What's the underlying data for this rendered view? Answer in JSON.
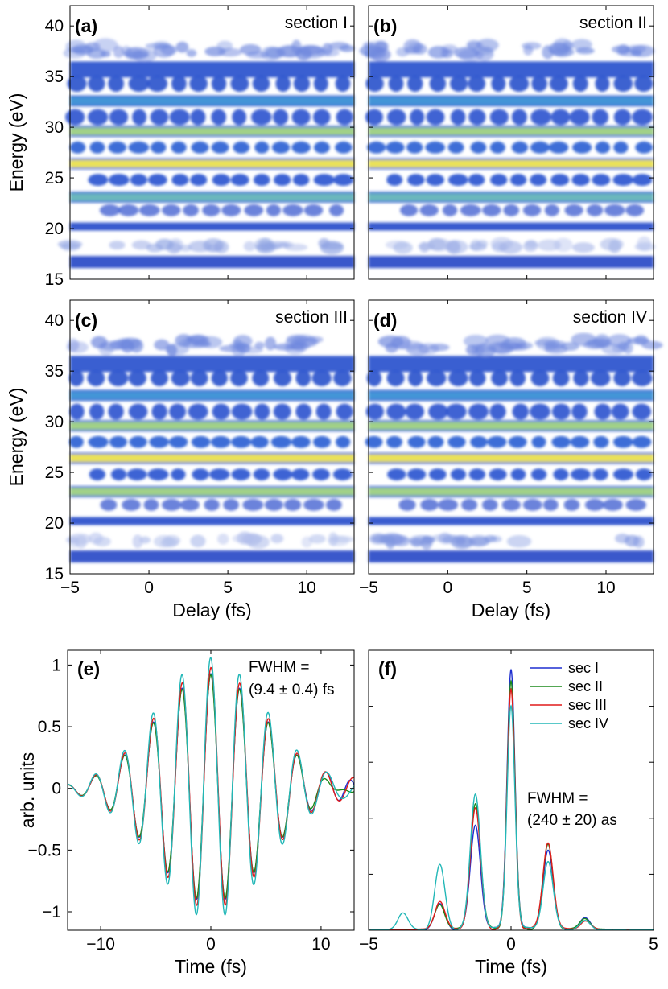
{
  "chart_data": [
    {
      "type": "heatmap",
      "panel": "(a)",
      "label": "section I",
      "xlim": [
        -5,
        13
      ],
      "ylim": [
        15,
        42
      ],
      "xticks": [
        "-5",
        "0",
        "5",
        "10"
      ],
      "yticks": [
        "15",
        "20",
        "25",
        "30",
        "35",
        "40"
      ],
      "xlabel": "",
      "ylabel": "Energy (eV)",
      "bands": [
        {
          "energy": 16.7,
          "kind": "solid",
          "color": "#2e4fc8"
        },
        {
          "energy": 18.3,
          "kind": "faint",
          "color": "#8fa3e3"
        },
        {
          "energy": 20.2,
          "kind": "solid",
          "color": "#2f52cc"
        },
        {
          "energy": 21.8,
          "kind": "blobs",
          "color": "#3859cf"
        },
        {
          "energy": 23.1,
          "kind": "solid",
          "color": "#62b3b9"
        },
        {
          "energy": 24.8,
          "kind": "blobs",
          "color": "#2c56d0"
        },
        {
          "energy": 26.4,
          "kind": "solid",
          "color": "#e9e04f"
        },
        {
          "energy": 28.0,
          "kind": "blobs",
          "color": "#2c62d4"
        },
        {
          "energy": 29.6,
          "kind": "solid",
          "color": "#9ccf82"
        },
        {
          "energy": 31.0,
          "kind": "blobs",
          "color": "#2f56cf"
        },
        {
          "energy": 32.6,
          "kind": "solid",
          "color": "#3a8fd5"
        },
        {
          "energy": 34.3,
          "kind": "blobs",
          "color": "#2e54cc"
        },
        {
          "energy": 35.7,
          "kind": "solid",
          "color": "#2f56cf"
        },
        {
          "energy": 37.6,
          "kind": "faint",
          "color": "#6f88de"
        }
      ]
    },
    {
      "type": "heatmap",
      "panel": "(b)",
      "label": "section II",
      "xlim": [
        -5,
        13
      ],
      "ylim": [
        15,
        42
      ],
      "xticks": [
        "-5",
        "0",
        "5",
        "10"
      ],
      "yticks": [
        "15",
        "20",
        "25",
        "30",
        "35",
        "40"
      ],
      "xlabel": "",
      "ylabel": "",
      "bands": [
        {
          "energy": 16.7,
          "kind": "solid",
          "color": "#2e4fc8"
        },
        {
          "energy": 18.3,
          "kind": "faint",
          "color": "#a3b3e8"
        },
        {
          "energy": 20.2,
          "kind": "solid",
          "color": "#2f52cc"
        },
        {
          "energy": 21.8,
          "kind": "blobs",
          "color": "#3859cf"
        },
        {
          "energy": 23.1,
          "kind": "solid",
          "color": "#62b3b9"
        },
        {
          "energy": 24.8,
          "kind": "blobs",
          "color": "#2c56d0"
        },
        {
          "energy": 26.4,
          "kind": "solid",
          "color": "#e9e04f"
        },
        {
          "energy": 28.0,
          "kind": "blobs",
          "color": "#2c62d4"
        },
        {
          "energy": 29.6,
          "kind": "solid",
          "color": "#9ccf82"
        },
        {
          "energy": 31.0,
          "kind": "blobs",
          "color": "#2f56cf"
        },
        {
          "energy": 32.6,
          "kind": "solid",
          "color": "#3a8fd5"
        },
        {
          "energy": 34.3,
          "kind": "blobs",
          "color": "#2e54cc"
        },
        {
          "energy": 35.7,
          "kind": "solid",
          "color": "#2f56cf"
        },
        {
          "energy": 37.6,
          "kind": "faint",
          "color": "#6f88de"
        }
      ]
    },
    {
      "type": "heatmap",
      "panel": "(c)",
      "label": "section III",
      "xlim": [
        -5,
        13
      ],
      "ylim": [
        15,
        42
      ],
      "xticks": [
        "-5",
        "0",
        "5",
        "10"
      ],
      "yticks": [
        "15",
        "20",
        "25",
        "30",
        "35",
        "40"
      ],
      "xlabel": "Delay (fs)",
      "ylabel": "Energy (eV)",
      "bands": [
        {
          "energy": 16.7,
          "kind": "solid",
          "color": "#2e4fc8"
        },
        {
          "energy": 18.3,
          "kind": "faint",
          "color": "#b3c0ec"
        },
        {
          "energy": 20.2,
          "kind": "solid",
          "color": "#2f52cc"
        },
        {
          "energy": 21.8,
          "kind": "blobs",
          "color": "#3859cf"
        },
        {
          "energy": 23.1,
          "kind": "solid",
          "color": "#9ccf82"
        },
        {
          "energy": 24.8,
          "kind": "blobs",
          "color": "#2c56d0"
        },
        {
          "energy": 26.4,
          "kind": "solid",
          "color": "#e9e04f"
        },
        {
          "energy": 28.0,
          "kind": "blobs",
          "color": "#2c62d4"
        },
        {
          "energy": 29.6,
          "kind": "solid",
          "color": "#9ccf82"
        },
        {
          "energy": 31.0,
          "kind": "blobs",
          "color": "#2f56cf"
        },
        {
          "energy": 32.6,
          "kind": "solid",
          "color": "#3a8fd5"
        },
        {
          "energy": 34.3,
          "kind": "blobs",
          "color": "#2e54cc"
        },
        {
          "energy": 35.7,
          "kind": "solid",
          "color": "#2f56cf"
        },
        {
          "energy": 37.6,
          "kind": "faint",
          "color": "#6f88de"
        }
      ]
    },
    {
      "type": "heatmap",
      "panel": "(d)",
      "label": "section IV",
      "xlim": [
        -5,
        13
      ],
      "ylim": [
        15,
        42
      ],
      "xticks": [
        "-5",
        "0",
        "5",
        "10"
      ],
      "yticks": [
        "15",
        "20",
        "25",
        "30",
        "35",
        "40"
      ],
      "xlabel": "Delay (fs)",
      "ylabel": "",
      "bands": [
        {
          "energy": 16.7,
          "kind": "solid",
          "color": "#2e4fc8"
        },
        {
          "energy": 18.3,
          "kind": "faint",
          "color": "#7f95e0"
        },
        {
          "energy": 20.2,
          "kind": "solid",
          "color": "#2f52cc"
        },
        {
          "energy": 21.8,
          "kind": "blobs",
          "color": "#3859cf"
        },
        {
          "energy": 23.1,
          "kind": "solid",
          "color": "#9ccf82"
        },
        {
          "energy": 24.8,
          "kind": "blobs",
          "color": "#2c56d0"
        },
        {
          "energy": 26.4,
          "kind": "solid",
          "color": "#e9e04f"
        },
        {
          "energy": 28.0,
          "kind": "blobs",
          "color": "#2c62d4"
        },
        {
          "energy": 29.6,
          "kind": "solid",
          "color": "#9ccf82"
        },
        {
          "energy": 31.0,
          "kind": "blobs",
          "color": "#2f56cf"
        },
        {
          "energy": 32.6,
          "kind": "solid",
          "color": "#3a8fd5"
        },
        {
          "energy": 34.3,
          "kind": "blobs",
          "color": "#2e54cc"
        },
        {
          "energy": 35.7,
          "kind": "solid",
          "color": "#2f56cf"
        },
        {
          "energy": 37.6,
          "kind": "faint",
          "color": "#6f88de"
        }
      ]
    },
    {
      "type": "line",
      "panel": "(e)",
      "xlim": [
        -13,
        13
      ],
      "ylim": [
        -1.15,
        1.12
      ],
      "xticks": [
        -10,
        0,
        10
      ],
      "xtick_labels": [
        "−10",
        "0",
        "10"
      ],
      "yticks": [
        -1,
        -0.5,
        0,
        0.5,
        1
      ],
      "ytick_labels": [
        "−1",
        "−0.5",
        "0",
        "0.5",
        "1"
      ],
      "xlabel": "Time (fs)",
      "ylabel": "arb. units",
      "annotation": [
        "FWHM =",
        "(9.4 ± 0.4) fs"
      ],
      "model": {
        "carrier_period_fs": 2.62,
        "fwhm_fs": 9.4
      },
      "series": [
        {
          "name": "sec I",
          "color": "#1f2fd0",
          "amplitude": 0.93,
          "phase": 0.0
        },
        {
          "name": "sec II",
          "color": "#1a8a1a",
          "amplitude": 0.92,
          "phase": 0.02
        },
        {
          "name": "sec III",
          "color": "#e01a1a",
          "amplitude": 0.98,
          "phase": -0.03
        },
        {
          "name": "sec IV",
          "color": "#22b7b7",
          "amplitude": 1.06,
          "phase": 0.04
        }
      ]
    },
    {
      "type": "line",
      "panel": "(f)",
      "xlim": [
        -5,
        5
      ],
      "ylim": [
        0,
        1.0
      ],
      "xticks": [
        -5,
        0,
        5
      ],
      "xtick_labels": [
        "−5",
        "0",
        "5"
      ],
      "xlabel": "Time (fs)",
      "ylabel": "",
      "annotation": [
        "FWHM =",
        "(240 ± 20) as"
      ],
      "legend_position": "top-right",
      "peak_times_fs": [
        -3.8,
        -2.5,
        -1.25,
        0,
        1.3,
        2.6
      ],
      "series": [
        {
          "name": "sec I",
          "color": "#1f2fd0",
          "peaks": [
            0.0,
            0.09,
            0.37,
            0.93,
            0.28,
            0.04
          ]
        },
        {
          "name": "sec II",
          "color": "#1a8a1a",
          "peaks": [
            0.0,
            0.09,
            0.45,
            0.88,
            0.3,
            0.04
          ]
        },
        {
          "name": "sec III",
          "color": "#e01a1a",
          "peaks": [
            0.0,
            0.1,
            0.43,
            0.85,
            0.31,
            0.03
          ]
        },
        {
          "name": "sec IV",
          "color": "#22b7b7",
          "peaks": [
            0.06,
            0.23,
            0.48,
            0.8,
            0.24,
            0.03
          ]
        }
      ]
    }
  ]
}
